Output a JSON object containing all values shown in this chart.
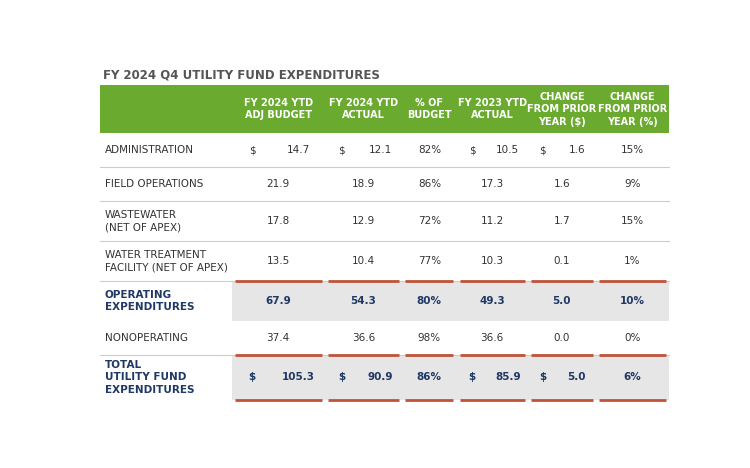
{
  "title": "FY 2024 Q4 UTILITY FUND EXPENDITURES",
  "header_bg": "#6aaa2e",
  "header_text_color": "#ffffff",
  "title_color": "#555555",
  "col_headers": [
    "FY 2024 YTD\nADJ BUDGET",
    "FY 2024 YTD\nACTUAL",
    "% OF\nBUDGET",
    "FY 2023 YTD\nACTUAL",
    "CHANGE\nFROM PRIOR\nYEAR ($)",
    "CHANGE\nFROM PRIOR\nYEAR (%)"
  ],
  "rows": [
    {
      "label": "ADMINISTRATION",
      "values": [
        "14.7",
        "12.1",
        "82%",
        "10.5",
        "1.6",
        "15%"
      ],
      "dollar_prefix": [
        true,
        true,
        false,
        true,
        true,
        false
      ],
      "style": "normal"
    },
    {
      "label": "FIELD OPERATIONS",
      "values": [
        "21.9",
        "18.9",
        "86%",
        "17.3",
        "1.6",
        "9%"
      ],
      "dollar_prefix": [
        false,
        false,
        false,
        false,
        false,
        false
      ],
      "style": "normal"
    },
    {
      "label": "WASTEWATER\n(NET OF APEX)",
      "values": [
        "17.8",
        "12.9",
        "72%",
        "11.2",
        "1.7",
        "15%"
      ],
      "dollar_prefix": [
        false,
        false,
        false,
        false,
        false,
        false
      ],
      "style": "normal"
    },
    {
      "label": "WATER TREATMENT\nFACILITY (NET OF APEX)",
      "values": [
        "13.5",
        "10.4",
        "77%",
        "10.3",
        "0.1",
        "1%"
      ],
      "dollar_prefix": [
        false,
        false,
        false,
        false,
        false,
        false
      ],
      "style": "normal"
    },
    {
      "label": "OPERATING\nEXPENDITURES",
      "values": [
        "67.9",
        "54.3",
        "80%",
        "49.3",
        "5.0",
        "10%"
      ],
      "dollar_prefix": [
        false,
        false,
        false,
        false,
        false,
        false
      ],
      "style": "subtotal"
    },
    {
      "label": "NONOPERATING",
      "values": [
        "37.4",
        "36.6",
        "98%",
        "36.6",
        "0.0",
        "0%"
      ],
      "dollar_prefix": [
        false,
        false,
        false,
        false,
        false,
        false
      ],
      "style": "normal"
    },
    {
      "label": "TOTAL\nUTILITY FUND\nEXPENDITURES",
      "values": [
        "105.3",
        "90.9",
        "86%",
        "85.9",
        "5.0",
        "6%"
      ],
      "dollar_prefix": [
        true,
        true,
        false,
        true,
        true,
        false
      ],
      "style": "total"
    }
  ],
  "subtotal_bg": "#e6e6e6",
  "normal_bg": "#ffffff",
  "subtotal_label_color": "#1f3864",
  "subtotal_value_color": "#1f3864",
  "normal_label_color": "#333333",
  "normal_value_color": "#333333",
  "orange_line_color": "#c0533a",
  "separator_color": "#cccccc",
  "fig_bg": "#ffffff"
}
